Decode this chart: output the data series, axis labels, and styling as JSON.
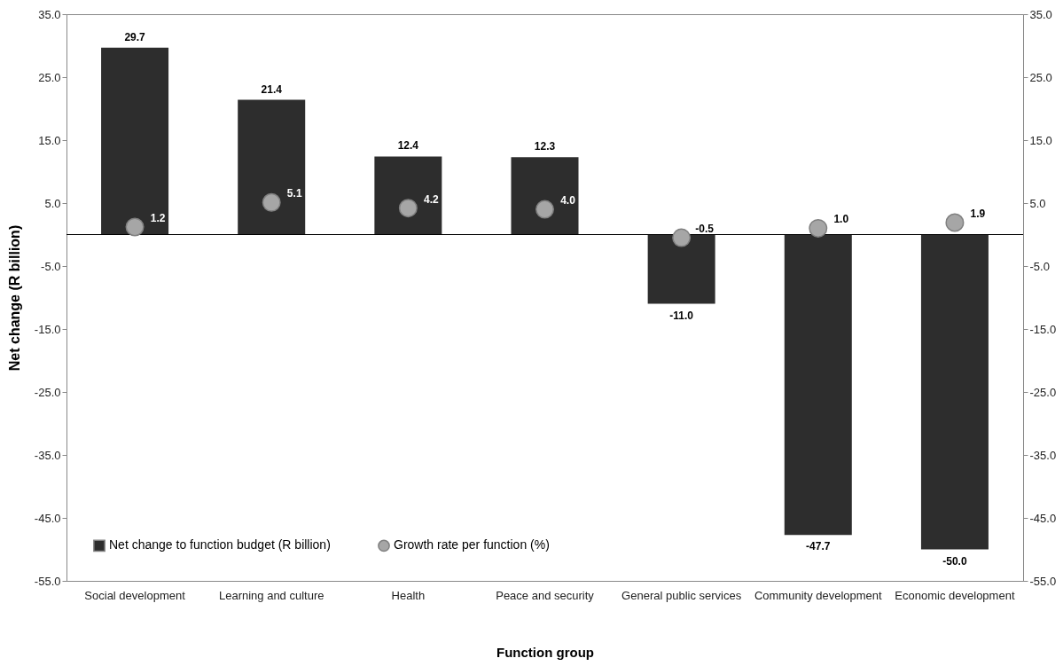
{
  "chart_data": {
    "type": "bar",
    "xlabel": "Function group",
    "ylabel": "Net change (R billion)",
    "categories": [
      "Social development",
      "Learning and culture",
      "Health",
      "Peace and security",
      "General public services",
      "Community development",
      "Economic development"
    ],
    "series": [
      {
        "name": "Net change to function budget (R billion)",
        "color": "#2d2d2d",
        "values": [
          29.7,
          21.4,
          12.4,
          12.3,
          -11.0,
          -47.7,
          -50.0
        ],
        "value_labels": [
          "29.7",
          "21.4",
          "12.4",
          "12.3",
          "-11.0",
          "-47.7",
          "-50.0"
        ]
      },
      {
        "name": "Growth rate per function (%)",
        "type": "scatter",
        "axis": "y2",
        "color": "#a6a6a6",
        "values": [
          1.2,
          5.1,
          4.2,
          4.0,
          -0.5,
          1.0,
          1.9
        ],
        "value_labels": [
          "1.2",
          "5.1",
          "4.2",
          "4.0",
          "-0.5",
          "1.0",
          "1.9"
        ]
      }
    ],
    "ylim": [
      -55,
      35
    ],
    "yticks": [
      {
        "value": 35,
        "label": "35.0"
      },
      {
        "value": 25,
        "label": "25.0"
      },
      {
        "value": 15,
        "label": "15.0"
      },
      {
        "value": 5,
        "label": "5.0"
      },
      {
        "value": -5,
        "label": "-5.0"
      },
      {
        "value": -15,
        "label": "-15.0"
      },
      {
        "value": -25,
        "label": "-25.0"
      },
      {
        "value": -35,
        "label": "-35.0"
      },
      {
        "value": -45,
        "label": "-45.0"
      },
      {
        "value": -55,
        "label": "-55.0"
      }
    ],
    "y2lim": [
      -55,
      35
    ],
    "y2ticks": [
      {
        "value": 35,
        "label": "35.0"
      },
      {
        "value": 25,
        "label": "25.0"
      },
      {
        "value": 15,
        "label": "15.0"
      },
      {
        "value": 5,
        "label": "5.0"
      },
      {
        "value": -5,
        "label": "-5.0"
      },
      {
        "value": -15,
        "label": "-15.0"
      },
      {
        "value": -25,
        "label": "-25.0"
      },
      {
        "value": -35,
        "label": "-35.0"
      },
      {
        "value": -45,
        "label": "-45.0"
      },
      {
        "value": -55,
        "label": "-55.0"
      }
    ],
    "ref_lines": [
      {
        "axis": "y",
        "value": 0,
        "color": "#000000"
      }
    ],
    "legend": "bottom left",
    "grid": false
  }
}
